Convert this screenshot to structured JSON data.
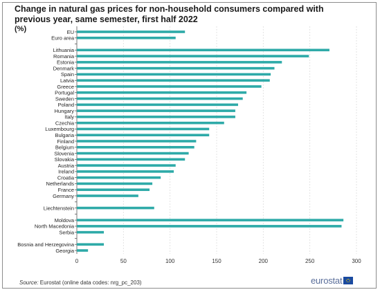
{
  "chart_data": {
    "type": "bar",
    "orientation": "horizontal",
    "title": "Change in natural gas prices for non-household consumers compared with previous year, same semester, first half 2022",
    "unit_label": "(%)",
    "xlim": [
      0,
      300
    ],
    "x_ticks": [
      "0",
      "50",
      "100",
      "150",
      "200",
      "250",
      "300"
    ],
    "grid": true,
    "bar_color": "#2eaaa8",
    "categories": [
      "EU",
      "Euro area",
      "",
      "Lithuania",
      "Romania",
      "Estonia",
      "Denmark",
      "Spain",
      "Latvia",
      "Greece",
      "Portugal",
      "Sweden",
      "Poland",
      "Hungary",
      "Italy",
      "Czechia",
      "Luxembourg",
      "Bulgaria",
      "Finland",
      "Belgium",
      "Slovenia",
      "Slovakia",
      "Austria",
      "Ireland",
      "Croatia",
      "Netherlands",
      "France",
      "Germany",
      "",
      "Liechtenstein",
      "",
      "Moldova",
      "North Macedonia",
      "Serbia",
      "",
      "Bosnia and Herzegovina",
      "Georgia"
    ],
    "values": [
      116,
      106,
      null,
      271,
      249,
      220,
      212,
      208,
      207,
      198,
      182,
      178,
      173,
      170,
      170,
      158,
      142,
      142,
      128,
      126,
      120,
      116,
      106,
      104,
      90,
      81,
      78,
      66,
      null,
      83,
      null,
      286,
      284,
      29,
      null,
      29,
      12
    ]
  },
  "source": {
    "label": "Source:",
    "text": " Eurostat (online data codes: nrg_pc_203)"
  },
  "logo": {
    "text": "eurostat",
    "flag_color": "#1a4aa0"
  }
}
